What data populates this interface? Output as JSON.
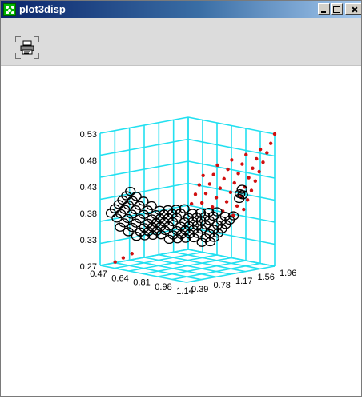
{
  "window": {
    "title": "plot3disp",
    "controls": [
      "minimize",
      "maximize",
      "close"
    ]
  },
  "toolbar": {
    "print_icon": "printer-icon"
  },
  "colors": {
    "grid": "#22e0f0",
    "points_red": "#d01010",
    "points_black": "#000000",
    "titlebar": "#0a246a"
  },
  "chart_data": {
    "type": "scatter",
    "dimensions": "3d",
    "grid": true,
    "z_ticks": [
      "0.53",
      "0.48",
      "0.43",
      "0.38",
      "0.33",
      "0.27"
    ],
    "x_ticks": [
      "0.47",
      "0.64",
      "0.81",
      "0.98",
      "1.14"
    ],
    "y_ticks": [
      "0.39",
      "0.78",
      "1.17",
      "1.56",
      "1.96"
    ],
    "x_range": [
      0.47,
      1.14
    ],
    "y_range": [
      0.39,
      1.96
    ],
    "z_range": [
      0.27,
      0.53
    ],
    "series": [
      {
        "marker": "dot",
        "color": "#d01010",
        "points": [
          [
            0.47,
            1.96,
            0.53
          ],
          [
            0.5,
            1.96,
            0.51
          ],
          [
            0.53,
            1.96,
            0.49
          ],
          [
            0.56,
            1.96,
            0.47
          ],
          [
            0.59,
            1.96,
            0.45
          ],
          [
            0.62,
            1.96,
            0.43
          ],
          [
            0.65,
            1.96,
            0.41
          ],
          [
            0.68,
            1.96,
            0.39
          ],
          [
            0.71,
            1.96,
            0.37
          ],
          [
            0.52,
            1.82,
            0.5
          ],
          [
            0.55,
            1.82,
            0.48
          ],
          [
            0.58,
            1.82,
            0.46
          ],
          [
            0.61,
            1.82,
            0.44
          ],
          [
            0.64,
            1.82,
            0.42
          ],
          [
            0.67,
            1.82,
            0.4
          ],
          [
            0.7,
            1.82,
            0.38
          ],
          [
            0.73,
            1.82,
            0.36
          ],
          [
            0.57,
            1.68,
            0.49
          ],
          [
            0.6,
            1.68,
            0.47
          ],
          [
            0.63,
            1.68,
            0.45
          ],
          [
            0.66,
            1.68,
            0.43
          ],
          [
            0.69,
            1.68,
            0.41
          ],
          [
            0.72,
            1.68,
            0.39
          ],
          [
            0.75,
            1.68,
            0.37
          ],
          [
            0.62,
            1.54,
            0.48
          ],
          [
            0.65,
            1.54,
            0.46
          ],
          [
            0.68,
            1.54,
            0.44
          ],
          [
            0.71,
            1.54,
            0.42
          ],
          [
            0.74,
            1.54,
            0.4
          ],
          [
            0.77,
            1.54,
            0.38
          ],
          [
            0.67,
            1.4,
            0.47
          ],
          [
            0.7,
            1.4,
            0.45
          ],
          [
            0.73,
            1.4,
            0.43
          ],
          [
            0.76,
            1.4,
            0.41
          ],
          [
            0.79,
            1.4,
            0.39
          ],
          [
            0.72,
            1.26,
            0.45
          ],
          [
            0.75,
            1.26,
            0.43
          ],
          [
            0.78,
            1.26,
            0.41
          ],
          [
            0.81,
            1.26,
            0.39
          ],
          [
            0.95,
            0.52,
            0.3
          ],
          [
            1.0,
            0.48,
            0.29
          ],
          [
            1.05,
            0.45,
            0.28
          ]
        ]
      },
      {
        "marker": "circle",
        "color": "#000000",
        "points": [
          [
            0.72,
            1.8,
            0.36
          ],
          [
            0.74,
            1.7,
            0.36
          ],
          [
            0.76,
            1.6,
            0.37
          ],
          [
            0.78,
            1.5,
            0.37
          ],
          [
            0.8,
            1.4,
            0.37
          ],
          [
            0.82,
            1.3,
            0.37
          ],
          [
            0.84,
            1.2,
            0.38
          ],
          [
            0.86,
            1.1,
            0.38
          ],
          [
            0.88,
            1.0,
            0.38
          ],
          [
            0.9,
            0.9,
            0.38
          ],
          [
            0.92,
            0.8,
            0.39
          ],
          [
            0.94,
            0.7,
            0.4
          ],
          [
            0.96,
            0.62,
            0.41
          ],
          [
            0.98,
            0.56,
            0.42
          ],
          [
            0.75,
            1.8,
            0.35
          ],
          [
            0.77,
            1.7,
            0.35
          ],
          [
            0.79,
            1.6,
            0.36
          ],
          [
            0.81,
            1.5,
            0.36
          ],
          [
            0.83,
            1.4,
            0.36
          ],
          [
            0.85,
            1.3,
            0.36
          ],
          [
            0.87,
            1.2,
            0.37
          ],
          [
            0.89,
            1.1,
            0.37
          ],
          [
            0.91,
            1.0,
            0.37
          ],
          [
            0.93,
            0.9,
            0.37
          ],
          [
            0.95,
            0.8,
            0.38
          ],
          [
            0.97,
            0.7,
            0.39
          ],
          [
            0.99,
            0.62,
            0.4
          ],
          [
            1.01,
            0.56,
            0.41
          ],
          [
            0.78,
            1.8,
            0.34
          ],
          [
            0.8,
            1.7,
            0.34
          ],
          [
            0.82,
            1.6,
            0.35
          ],
          [
            0.84,
            1.5,
            0.35
          ],
          [
            0.86,
            1.4,
            0.35
          ],
          [
            0.88,
            1.3,
            0.35
          ],
          [
            0.9,
            1.2,
            0.36
          ],
          [
            0.92,
            1.1,
            0.36
          ],
          [
            0.94,
            1.0,
            0.36
          ],
          [
            0.96,
            0.9,
            0.36
          ],
          [
            0.98,
            0.8,
            0.37
          ],
          [
            1.0,
            0.7,
            0.38
          ],
          [
            1.02,
            0.62,
            0.39
          ],
          [
            1.04,
            0.56,
            0.4
          ],
          [
            0.81,
            1.8,
            0.33
          ],
          [
            0.83,
            1.7,
            0.33
          ],
          [
            0.85,
            1.6,
            0.34
          ],
          [
            0.87,
            1.5,
            0.34
          ],
          [
            0.89,
            1.4,
            0.34
          ],
          [
            0.91,
            1.3,
            0.34
          ],
          [
            0.93,
            1.2,
            0.35
          ],
          [
            0.95,
            1.1,
            0.35
          ],
          [
            0.97,
            1.0,
            0.35
          ],
          [
            0.99,
            0.9,
            0.35
          ],
          [
            1.01,
            0.8,
            0.36
          ],
          [
            1.03,
            0.7,
            0.37
          ],
          [
            1.05,
            0.62,
            0.38
          ],
          [
            1.07,
            0.56,
            0.39
          ],
          [
            0.84,
            1.8,
            0.32
          ],
          [
            0.86,
            1.7,
            0.32
          ],
          [
            0.88,
            1.6,
            0.33
          ],
          [
            0.9,
            1.5,
            0.33
          ],
          [
            0.92,
            1.4,
            0.33
          ],
          [
            0.94,
            1.3,
            0.33
          ],
          [
            0.96,
            1.2,
            0.34
          ],
          [
            0.98,
            1.1,
            0.34
          ],
          [
            1.0,
            1.0,
            0.34
          ],
          [
            1.02,
            0.9,
            0.34
          ],
          [
            1.04,
            0.8,
            0.35
          ],
          [
            1.06,
            0.7,
            0.36
          ],
          [
            1.08,
            0.62,
            0.37
          ],
          [
            1.1,
            0.56,
            0.38
          ],
          [
            0.87,
            1.8,
            0.31
          ],
          [
            0.89,
            1.7,
            0.31
          ],
          [
            0.91,
            1.6,
            0.32
          ],
          [
            0.93,
            1.5,
            0.32
          ],
          [
            0.95,
            1.4,
            0.32
          ],
          [
            0.97,
            1.3,
            0.32
          ],
          [
            0.99,
            1.2,
            0.33
          ],
          [
            1.01,
            1.1,
            0.33
          ],
          [
            1.03,
            1.0,
            0.33
          ],
          [
            1.05,
            0.9,
            0.33
          ],
          [
            1.07,
            0.8,
            0.34
          ],
          [
            1.09,
            0.7,
            0.35
          ],
          [
            1.11,
            0.62,
            0.36
          ],
          [
            1.13,
            0.56,
            0.37
          ],
          [
            0.9,
            1.8,
            0.3
          ],
          [
            0.92,
            1.7,
            0.3
          ],
          [
            0.94,
            1.6,
            0.31
          ],
          [
            0.96,
            1.5,
            0.31
          ],
          [
            0.98,
            1.4,
            0.31
          ],
          [
            1.0,
            1.3,
            0.31
          ],
          [
            1.02,
            1.2,
            0.32
          ],
          [
            1.04,
            1.1,
            0.32
          ],
          [
            1.06,
            1.0,
            0.32
          ],
          [
            1.08,
            0.9,
            0.32
          ],
          [
            1.1,
            0.8,
            0.33
          ],
          [
            1.12,
            0.7,
            0.34
          ],
          [
            0.7,
            1.92,
            0.4
          ],
          [
            0.71,
            1.93,
            0.41
          ],
          [
            0.73,
            1.94,
            0.4
          ],
          [
            0.74,
            1.95,
            0.39
          ]
        ]
      }
    ]
  }
}
